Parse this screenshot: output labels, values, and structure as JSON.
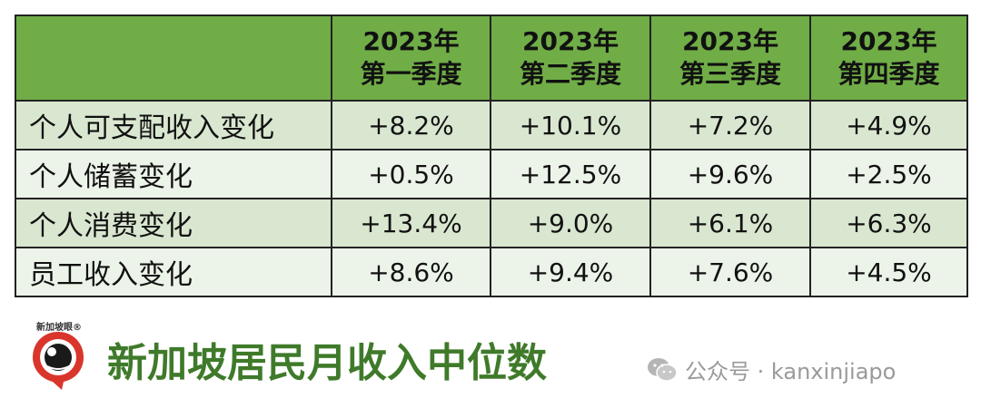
{
  "table": {
    "headers": [
      {
        "year": "",
        "quarter": ""
      },
      {
        "year": "2023年",
        "quarter": "第一季度"
      },
      {
        "year": "2023年",
        "quarter": "第二季度"
      },
      {
        "year": "2023年",
        "quarter": "第三季度"
      },
      {
        "year": "2023年",
        "quarter": "第四季度"
      }
    ],
    "rows": [
      {
        "label": "个人可支配收入变化",
        "values": [
          "+8.2%",
          "+10.1%",
          "+7.2%",
          "+4.9%"
        ]
      },
      {
        "label": "个人储蓄变化",
        "values": [
          "+0.5%",
          "+12.5%",
          "+9.6%",
          "+2.5%"
        ]
      },
      {
        "label": "个人消费变化",
        "values": [
          "+13.4%",
          "+9.0%",
          "+6.1%",
          "+6.3%"
        ]
      },
      {
        "label": "员工收入变化",
        "values": [
          "+8.6%",
          "+9.4%",
          "+7.6%",
          "+4.5%"
        ]
      }
    ]
  },
  "colors": {
    "header_bg": "#70ad47",
    "row_dark": "#d9e7d0",
    "row_light": "#ecf3e8",
    "title_green": "#3f7a2a",
    "logo_red": "#d9352b"
  },
  "footer": {
    "logo_text": "新加坡眼®",
    "logo_icon": "eye-logo-icon",
    "title": "新加坡居民月收入中位数",
    "wechat_icon": "wechat-icon",
    "wechat_text": "公众号 · kanxinjiapo"
  }
}
